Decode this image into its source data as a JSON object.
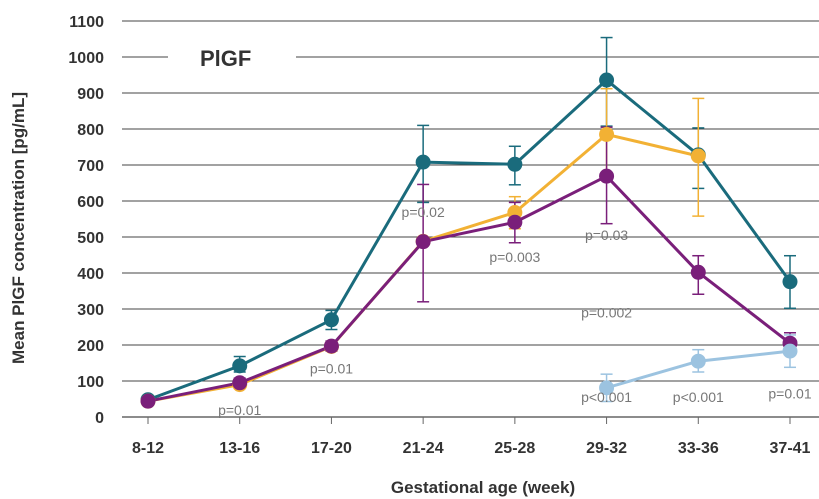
{
  "chart_data": {
    "type": "line",
    "title": "PlGF",
    "xlabel": "Gestational age (week)",
    "ylabel": "Mean PlGF concentration [pg/mL]",
    "ylim": [
      0,
      1100
    ],
    "yticks": [
      0,
      100,
      200,
      300,
      400,
      500,
      600,
      700,
      800,
      900,
      1000,
      1100
    ],
    "grid": true,
    "categories": [
      "8-12",
      "13-16",
      "17-20",
      "21-24",
      "25-28",
      "29-32",
      "33-36",
      "37-41"
    ],
    "series": [
      {
        "color": "#1a6b7c",
        "values": [
          48,
          142,
          270,
          708,
          702,
          936,
          728,
          376
        ],
        "err_low": [
          null,
          125,
          243,
          596,
          645,
          808,
          635,
          302
        ],
        "err_high": [
          null,
          168,
          296,
          810,
          752,
          1054,
          803,
          448
        ]
      },
      {
        "color": "#f2b134",
        "values": [
          44,
          90,
          196,
          488,
          568,
          785,
          725,
          null
        ],
        "err_low": [
          null,
          null,
          null,
          null,
          523,
          658,
          558,
          null
        ],
        "err_high": [
          null,
          null,
          null,
          null,
          612,
          912,
          885,
          null
        ]
      },
      {
        "color": "#7a1f7a",
        "values": [
          44,
          95,
          197,
          487,
          541,
          669,
          402,
          205
        ],
        "err_low": [
          null,
          82,
          183,
          320,
          484,
          537,
          341,
          182
        ],
        "err_high": [
          null,
          108,
          211,
          646,
          596,
          805,
          448,
          234
        ]
      },
      {
        "color": "#9cc3e0",
        "values": [
          null,
          null,
          null,
          null,
          null,
          81,
          155,
          183
        ],
        "err_low": [
          null,
          null,
          null,
          null,
          null,
          43,
          125,
          138
        ],
        "err_high": [
          null,
          null,
          null,
          null,
          null,
          119,
          187,
          228
        ]
      }
    ],
    "annotations": [
      {
        "text": "p=0.01",
        "x": "13-16",
        "y": 20
      },
      {
        "text": "p=0.01",
        "x": "17-20",
        "y": 135
      },
      {
        "text": "p=0.02",
        "x": "21-24",
        "y": 570
      },
      {
        "text": "p=0.003",
        "x": "25-28",
        "y": 445
      },
      {
        "text": "p=0.03",
        "x": "29-32",
        "y": 505
      },
      {
        "text": "p=0.002",
        "x": "29-32",
        "y": 290
      },
      {
        "text": "p<0.001",
        "x": "29-32",
        "y": 55
      },
      {
        "text": "p<0.001",
        "x": "33-36",
        "y": 55
      },
      {
        "text": "p=0.01",
        "x": "37-41",
        "y": 65
      }
    ]
  }
}
